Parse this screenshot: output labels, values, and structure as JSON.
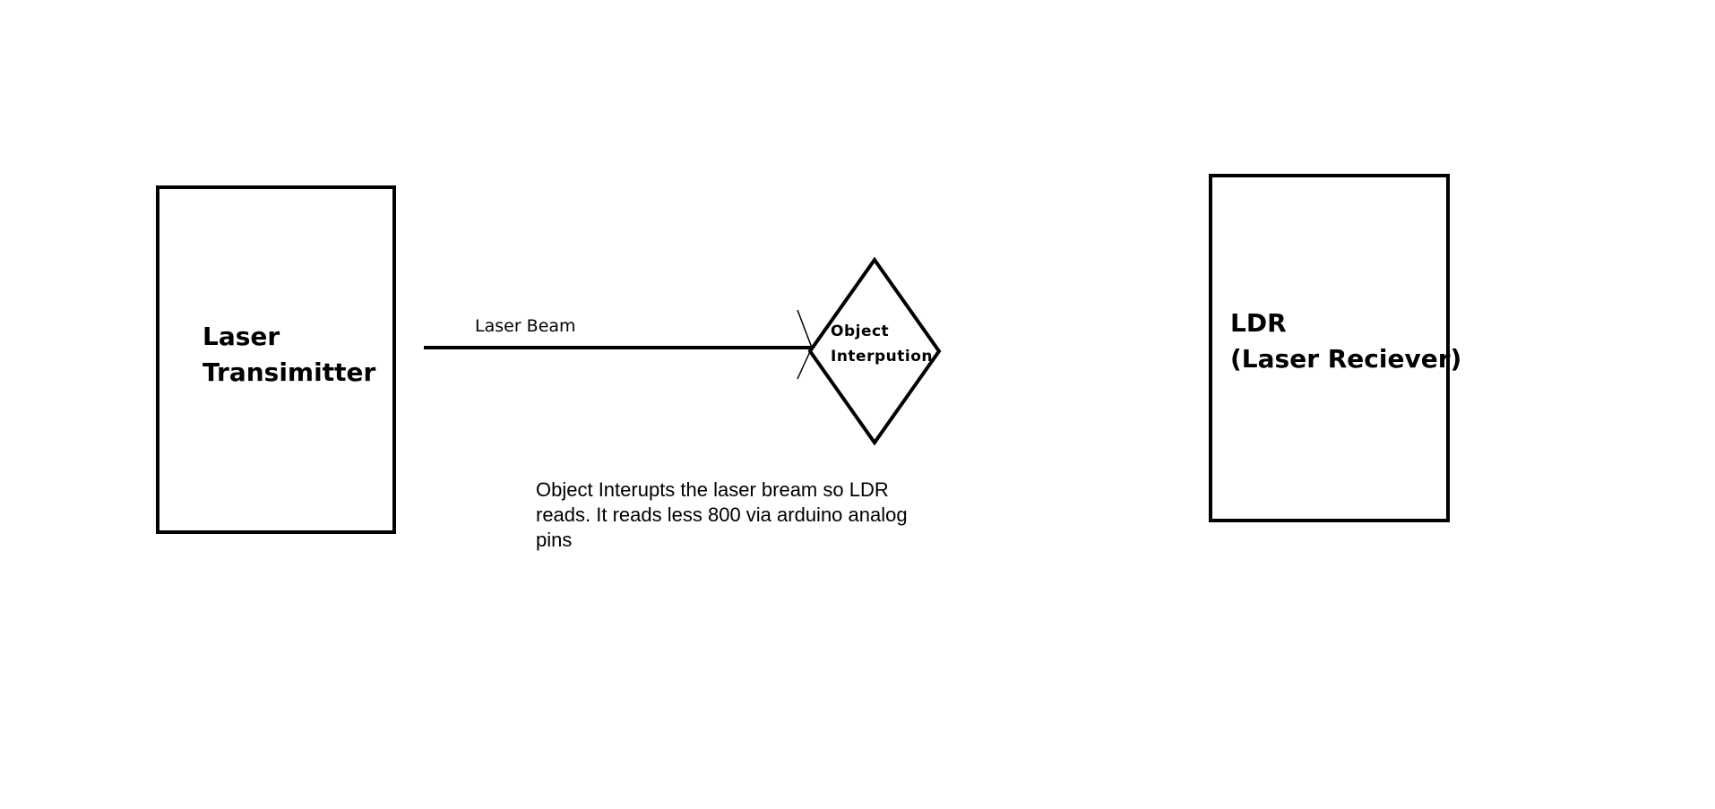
{
  "nodes": {
    "transmitter": {
      "label": "Laser\nTransimitter"
    },
    "receiver": {
      "label": "LDR\n(Laser Reciever)"
    },
    "object": {
      "label": "Object\nInterpution"
    }
  },
  "edges": {
    "beam": {
      "label": "Laser Beam"
    }
  },
  "note": {
    "text": "Object Interupts the laser bream so LDR reads. It reads less 800 via arduino analog pins"
  }
}
